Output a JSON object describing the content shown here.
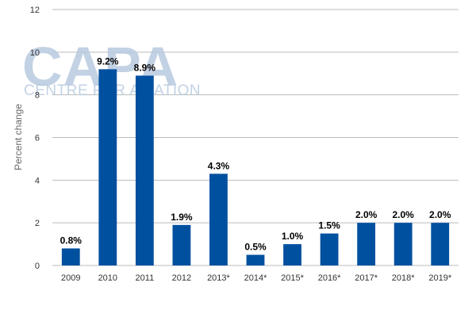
{
  "watermark": {
    "main": "CAPA",
    "sub": "CENTRE FOR AVIATION"
  },
  "chart_data": {
    "type": "bar",
    "title": "",
    "xlabel": "",
    "ylabel": "Percent change",
    "ylim": [
      0,
      12
    ],
    "yticks": [
      0,
      2,
      4,
      6,
      8,
      10,
      12
    ],
    "grid": true,
    "legend": "none",
    "bar_color": "#0050a0",
    "categories": [
      "2009",
      "2010",
      "2011",
      "2012",
      "2013*",
      "2014*",
      "2015*",
      "2016*",
      "2017*",
      "2018*",
      "2019*"
    ],
    "values": [
      0.8,
      9.2,
      8.9,
      1.9,
      4.3,
      0.5,
      1.0,
      1.5,
      2.0,
      2.0,
      2.0
    ],
    "data_labels": [
      "0.8%",
      "9.2%",
      "8.9%",
      "1.9%",
      "4.3%",
      "0.5%",
      "1.0%",
      "1.5%",
      "2.0%",
      "2.0%",
      "2.0%"
    ]
  }
}
